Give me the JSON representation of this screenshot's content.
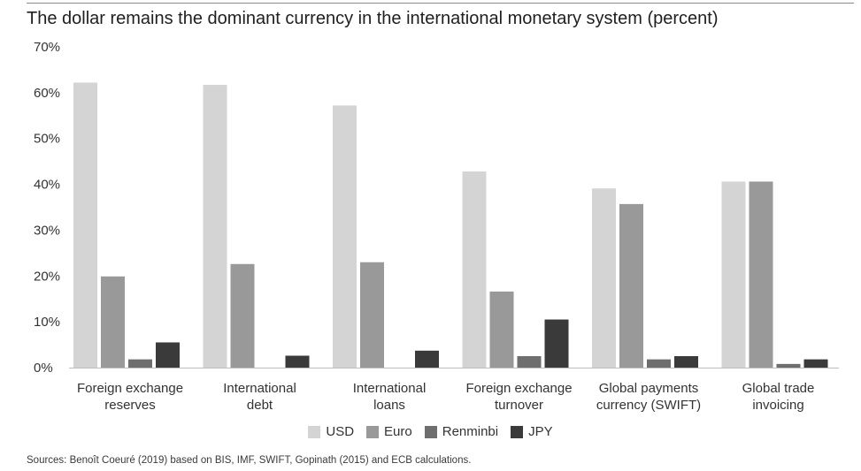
{
  "chart_data": {
    "type": "bar",
    "title": "The dollar remains the dominant currency in the international monetary system (percent)",
    "categories": [
      [
        "Foreign exchange",
        "reserves"
      ],
      [
        "International",
        "debt"
      ],
      [
        "International",
        "loans"
      ],
      [
        "Foreign exchange",
        "turnover"
      ],
      [
        "Global payments",
        "currency (SWIFT)"
      ],
      [
        "Global trade",
        "invoicing"
      ]
    ],
    "series": [
      {
        "name": "USD",
        "color": "#d4d4d4",
        "values": [
          62.2,
          61.7,
          57.2,
          42.8,
          39.1,
          40.6
        ]
      },
      {
        "name": "Euro",
        "color": "#999999",
        "values": [
          19.9,
          22.6,
          23.0,
          16.6,
          35.7,
          40.6
        ]
      },
      {
        "name": "Renminbi",
        "color": "#6e6e6e",
        "values": [
          1.8,
          0,
          0,
          2.5,
          1.8,
          0.8
        ]
      },
      {
        "name": "JPY",
        "color": "#3a3a3a",
        "values": [
          5.5,
          2.6,
          3.7,
          10.5,
          2.5,
          1.8
        ]
      }
    ],
    "ylim": [
      0,
      70
    ],
    "yticks": [
      "0%",
      "10%",
      "20%",
      "30%",
      "40%",
      "50%",
      "60%",
      "70%"
    ],
    "ytick_values": [
      0,
      10,
      20,
      30,
      40,
      50,
      60,
      70
    ],
    "grid": false,
    "legend_position": "bottom-center"
  },
  "source": "Sources: Benoît Coeuré (2019) based on BIS, IMF, SWIFT, Gopinath (2015) and ECB calculations."
}
